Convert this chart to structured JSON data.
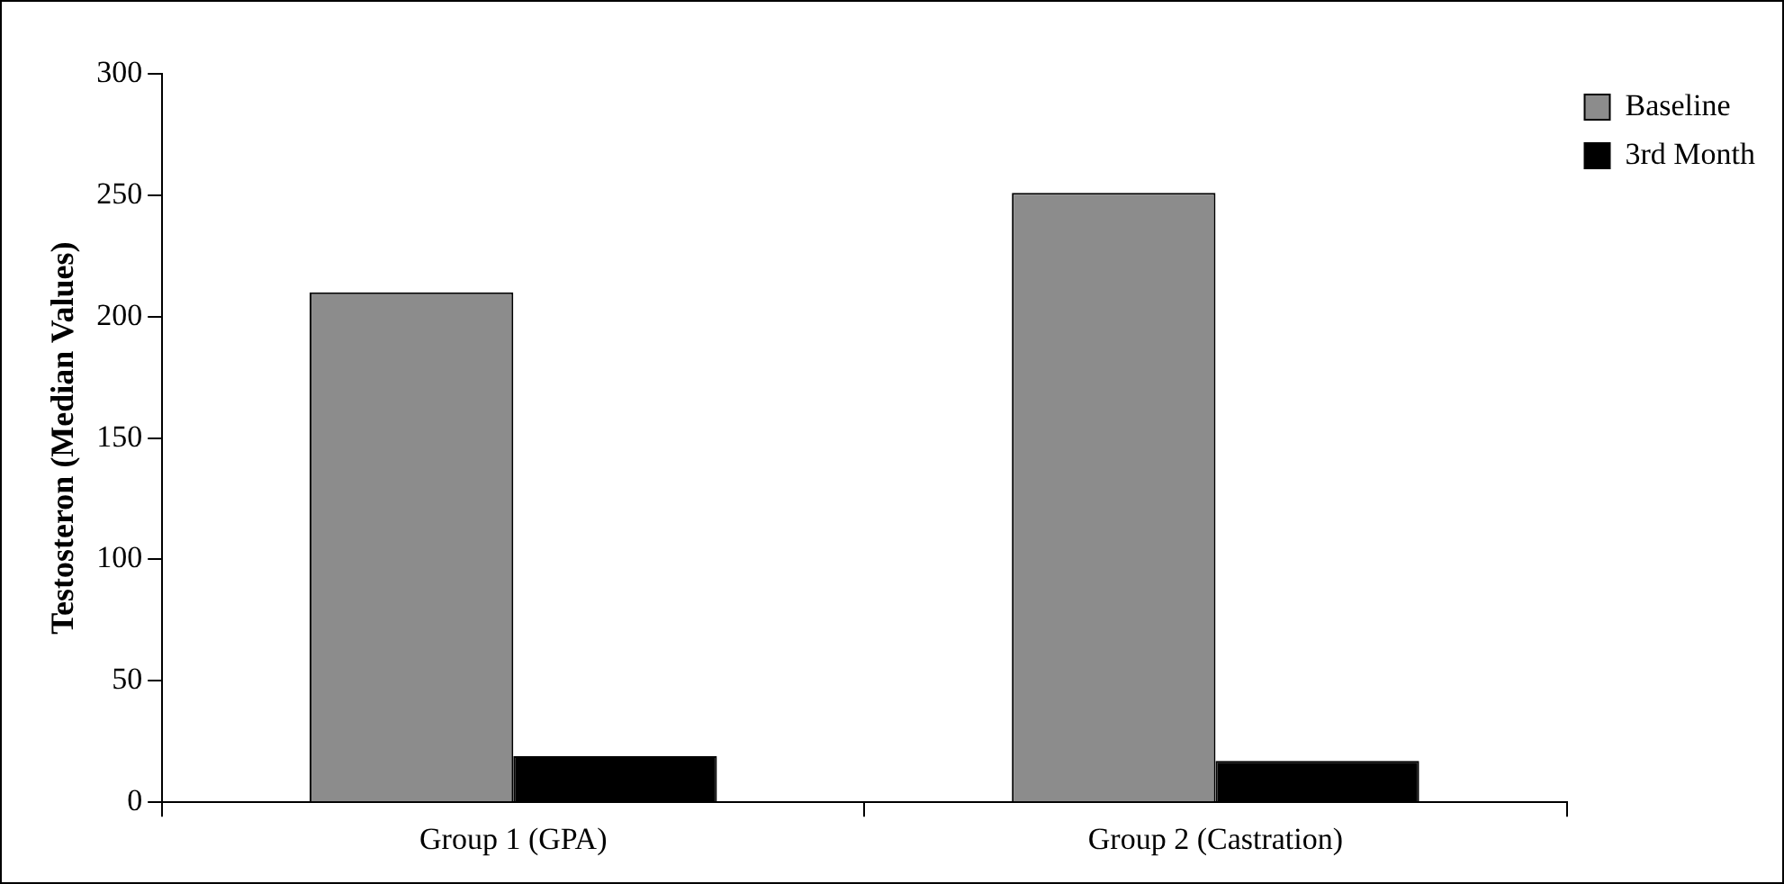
{
  "chart_data": {
    "type": "bar",
    "ylabel": "Testosteron (Median Values)",
    "categories": [
      "Group 1 (GPA)",
      "Group 2 (Castration)"
    ],
    "series": [
      {
        "name": "Baseline",
        "color": "#8c8c8c",
        "values": [
          210,
          251
        ]
      },
      {
        "name": "3rd Month",
        "color": "#000000",
        "values": [
          19,
          17
        ]
      }
    ],
    "ylim": [
      0,
      300
    ],
    "yticks": [
      0,
      50,
      100,
      150,
      200,
      250,
      300
    ],
    "grid": false,
    "legend": "top right"
  }
}
